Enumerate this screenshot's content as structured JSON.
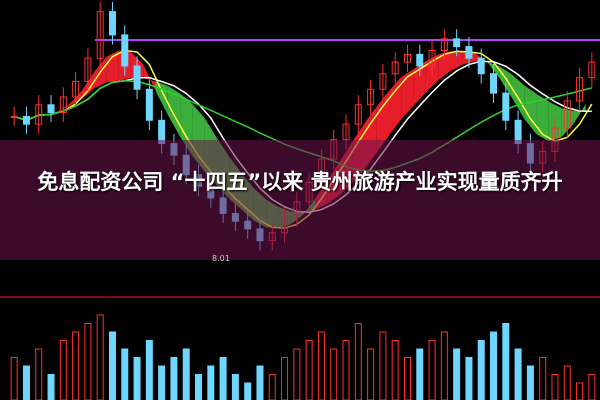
{
  "headline": "免息配资公司 “十四五”以来 贵州旅游产业实现量质齐升",
  "chart_data": {
    "type": "candlestick",
    "low_label": "8.01",
    "ylim": [
      7.8,
      14.5
    ],
    "closes": [
      11.5,
      11.3,
      11.8,
      11.6,
      12.0,
      12.4,
      13.0,
      14.2,
      13.6,
      12.8,
      12.2,
      11.4,
      10.8,
      10.5,
      10.0,
      9.7,
      9.4,
      9.0,
      8.8,
      8.6,
      8.3,
      8.5,
      8.9,
      9.3,
      9.8,
      10.4,
      10.9,
      11.3,
      11.8,
      12.2,
      12.6,
      12.9,
      13.1,
      12.8,
      13.2,
      13.5,
      13.3,
      13.0,
      12.6,
      12.1,
      11.4,
      10.8,
      10.3,
      10.6,
      11.2,
      11.9,
      12.5,
      12.9
    ],
    "volume": [
      5,
      4,
      6,
      3,
      7,
      8,
      9,
      10,
      8,
      6,
      5,
      7,
      4,
      5,
      6,
      3,
      4,
      5,
      3,
      2,
      4,
      3,
      5,
      6,
      7,
      8,
      6,
      7,
      9,
      6,
      8,
      7,
      5,
      6,
      7,
      8,
      6,
      5,
      7,
      8,
      9,
      6,
      4,
      5,
      3,
      4,
      2,
      3
    ],
    "resistance_level": 13.47,
    "colors": {
      "up": "#ff3030",
      "down": "#6fd6ff",
      "ma_short": "#ffff40",
      "ma_long": "#30d030",
      "ma_mid": "#d040d0",
      "band_up": "#ff2030",
      "band_down": "#40c040"
    }
  }
}
